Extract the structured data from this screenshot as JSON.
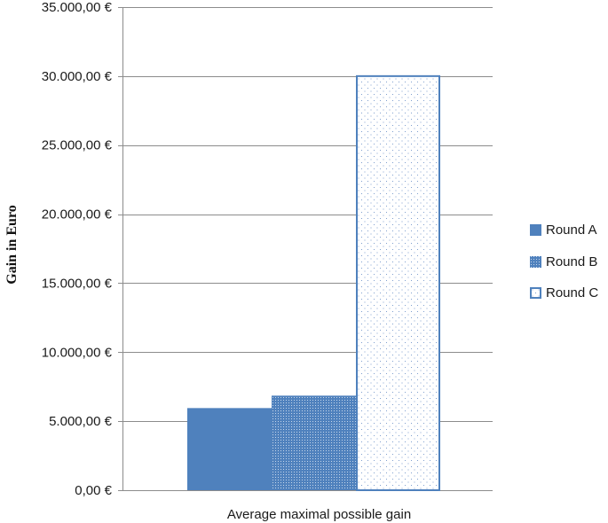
{
  "chart_data": {
    "type": "bar",
    "title": "",
    "xlabel": "",
    "ylabel": "Gain in Euro",
    "categories": [
      "Average maximal possible gain"
    ],
    "ylim": [
      0,
      35000
    ],
    "ytick_values": [
      0,
      5000,
      10000,
      15000,
      20000,
      25000,
      30000,
      35000
    ],
    "ytick_labels": [
      "0,00 €",
      "5.000,00 €",
      "10.000,00 €",
      "15.000,00 €",
      "20.000,00 €",
      "25.000,00 €",
      "30.000,00 €",
      "35.000,00 €"
    ],
    "grid": true,
    "legend_position": "right",
    "series": [
      {
        "name": "Round A",
        "values": [
          5950
        ],
        "fill": "solid",
        "color": "#4f81bd"
      },
      {
        "name": "Round B",
        "values": [
          6850
        ],
        "fill": "fine-dots",
        "color": "#4f81bd"
      },
      {
        "name": "Round C",
        "values": [
          30000
        ],
        "fill": "sparse-dots",
        "color": "#4f81bd"
      }
    ]
  }
}
